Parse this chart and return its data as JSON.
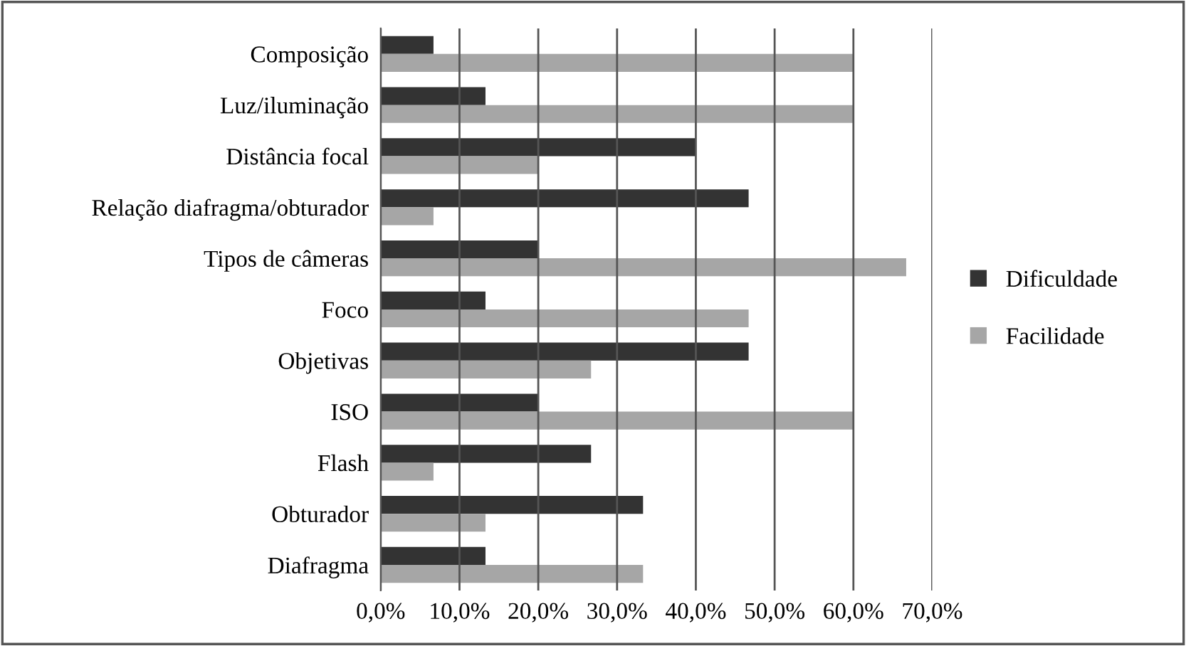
{
  "chart_data": {
    "type": "bar",
    "orientation": "horizontal",
    "categories": [
      "Composição",
      "Luz/iluminação",
      "Distância focal",
      "Relação diafragma/obturador",
      "Tipos de câmeras",
      "Foco",
      "Objetivas",
      "ISO",
      "Flash",
      "Obturador",
      "Diafragma"
    ],
    "series": [
      {
        "name": "Dificuldade",
        "color": "#333333",
        "values": [
          6.7,
          13.3,
          40,
          46.7,
          20,
          13.3,
          46.7,
          20,
          26.7,
          33.3,
          13.3
        ]
      },
      {
        "name": "Facilidade",
        "color": "#a6a6a6",
        "values": [
          60,
          60,
          20,
          6.7,
          66.7,
          46.7,
          26.7,
          60,
          6.7,
          13.3,
          33.3
        ]
      }
    ],
    "xlim": [
      0,
      70
    ],
    "xticks": [
      {
        "value": 0,
        "label": "0,0%"
      },
      {
        "value": 10,
        "label": "10,0%"
      },
      {
        "value": 20,
        "label": "20,0%"
      },
      {
        "value": 30,
        "label": "30,0%"
      },
      {
        "value": 40,
        "label": "40,0%"
      },
      {
        "value": 50,
        "label": "50,0%"
      },
      {
        "value": 60,
        "label": "60,0%"
      },
      {
        "value": 70,
        "label": "70,0%"
      }
    ],
    "grid": "x",
    "legend": "right"
  }
}
